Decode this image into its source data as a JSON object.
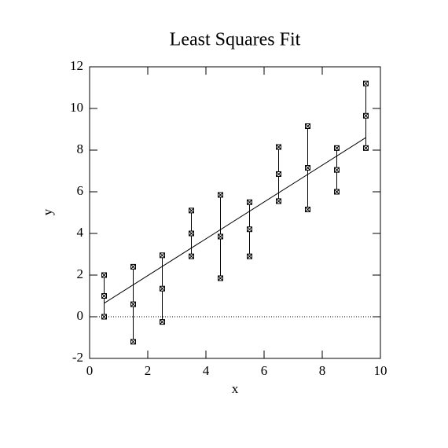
{
  "chart_data": {
    "type": "errorbar",
    "title": "Least Squares Fit",
    "xlabel": "x",
    "ylabel": "y",
    "x": [
      0.5,
      1.5,
      2.5,
      3.5,
      4.5,
      5.5,
      6.5,
      7.5,
      8.5,
      9.5
    ],
    "values": [
      1.0,
      0.6,
      1.35,
      4.0,
      3.85,
      4.2,
      6.85,
      7.15,
      7.05,
      9.65
    ],
    "errors": [
      1.0,
      1.8,
      1.6,
      1.1,
      2.0,
      1.3,
      1.3,
      2.0,
      1.05,
      1.55
    ],
    "fit": {
      "x": [
        0.5,
        9.5
      ],
      "values": [
        0.65,
        8.6
      ]
    },
    "zero_line": true,
    "color": "#000000",
    "xlim": [
      0,
      10
    ],
    "xticks": [
      0,
      2,
      4,
      6,
      8,
      10
    ],
    "ylim": [
      -2,
      12
    ],
    "yticks": [
      -2,
      0,
      2,
      4,
      6,
      8,
      10,
      12
    ]
  }
}
